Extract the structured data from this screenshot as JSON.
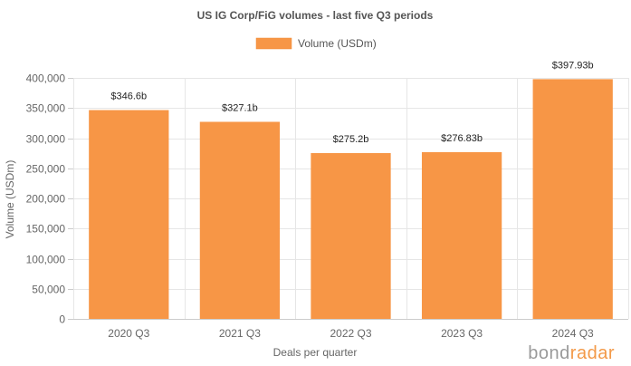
{
  "chart_data": {
    "type": "bar",
    "title": "US IG Corp/FiG volumes - last five Q3 periods",
    "xlabel": "Deals per quarter",
    "ylabel": "Volume (USDm)",
    "categories": [
      "2020 Q3",
      "2021 Q3",
      "2022 Q3",
      "2023 Q3",
      "2024 Q3"
    ],
    "series": [
      {
        "name": "Volume (USDm)",
        "values": [
          346600,
          327100,
          275200,
          276830,
          397930
        ],
        "labels": [
          "$346.6b",
          "$327.1b",
          "$275.2b",
          "$276.83b",
          "$397.93b"
        ],
        "color": "#f79646"
      }
    ],
    "ylim": [
      0,
      400000
    ],
    "yticks": [
      0,
      50000,
      100000,
      150000,
      200000,
      250000,
      300000,
      350000,
      400000
    ],
    "ytick_labels": [
      "0",
      "50,000",
      "100,000",
      "150,000",
      "200,000",
      "250,000",
      "300,000",
      "350,000",
      "400,000"
    ],
    "grid": true,
    "legend": "top-center"
  },
  "watermark": {
    "part1": "bond",
    "part2": "radar",
    "color1": "#9a9a9a",
    "color2": "#f39a49"
  }
}
